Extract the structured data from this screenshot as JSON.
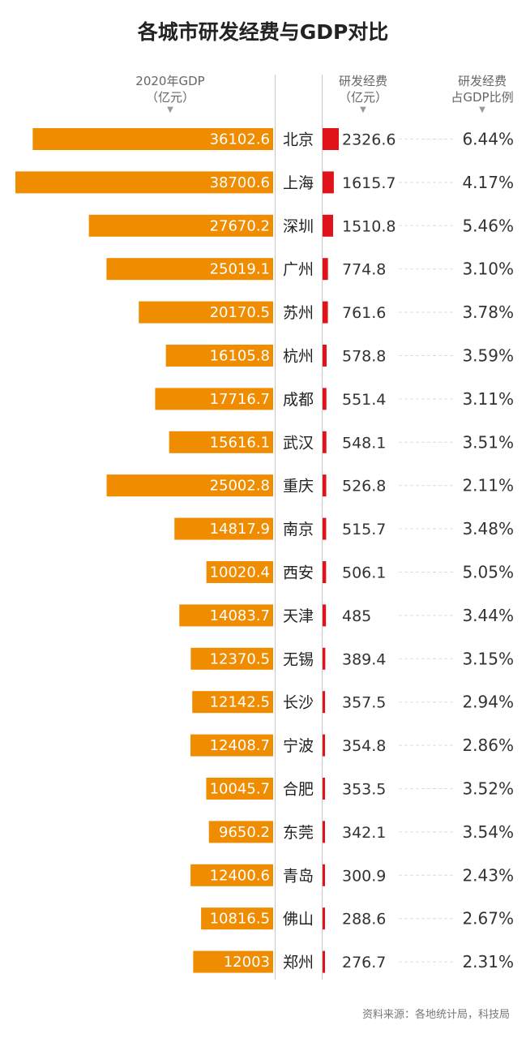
{
  "title": "各城市研发经费与GDP对比",
  "headers": {
    "gdp_line1": "2020年GDP",
    "gdp_line2": "（亿元）",
    "rd_line1": "研发经费",
    "rd_line2": "（亿元）",
    "ratio_line1": "研发经费",
    "ratio_line2": "占GDP比例"
  },
  "source": "资料来源：各地统计局，科技局",
  "colors": {
    "gdp_bar": "#f08c00",
    "rd_bar": "#e0131b",
    "text": "#333333",
    "label_on_bar": "#ffffff"
  },
  "chart_data": {
    "type": "bar",
    "categories": [
      "北京",
      "上海",
      "深圳",
      "广州",
      "苏州",
      "杭州",
      "成都",
      "武汉",
      "重庆",
      "南京",
      "西安",
      "天津",
      "无锡",
      "长沙",
      "宁波",
      "合肥",
      "东莞",
      "青岛",
      "佛山",
      "郑州"
    ],
    "series": [
      {
        "name": "2020年GDP（亿元）",
        "values": [
          "36102.6",
          "38700.6",
          "27670.2",
          "25019.1",
          "20170.5",
          "16105.8",
          "17716.7",
          "15616.1",
          "25002.8",
          "14817.9",
          "10020.4",
          "14083.7",
          "12370.5",
          "12142.5",
          "12408.7",
          "10045.7",
          "9650.2",
          "12400.6",
          "10816.5",
          "12003"
        ]
      },
      {
        "name": "研发经费（亿元）",
        "values": [
          "2326.6",
          "1615.7",
          "1510.8",
          "774.8",
          "761.6",
          "578.8",
          "551.4",
          "548.1",
          "526.8",
          "515.7",
          "506.1",
          "485",
          "389.4",
          "357.5",
          "354.8",
          "353.5",
          "342.1",
          "300.9",
          "288.6",
          "276.7"
        ]
      },
      {
        "name": "研发经费占GDP比例",
        "values": [
          "6.44%",
          "4.17%",
          "5.46%",
          "3.10%",
          "3.78%",
          "3.59%",
          "3.11%",
          "3.51%",
          "2.11%",
          "3.48%",
          "5.05%",
          "3.44%",
          "3.15%",
          "2.94%",
          "2.86%",
          "3.52%",
          "3.54%",
          "2.43%",
          "2.67%",
          "2.31%"
        ]
      }
    ]
  }
}
